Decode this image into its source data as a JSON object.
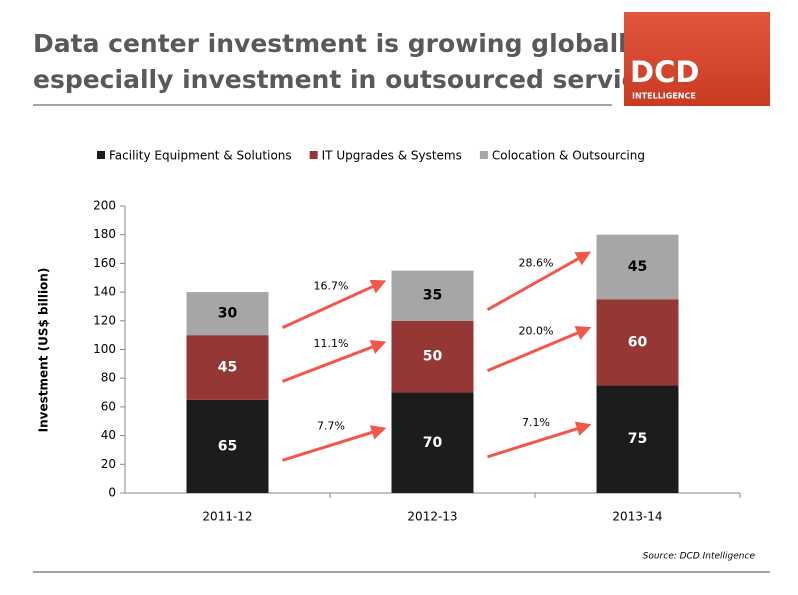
{
  "chart_data": {
    "type": "stacked_bar",
    "title": [
      "Data center investment is growing globally,",
      "especially investment in outsourced services"
    ],
    "logo": [
      "DCD",
      "INTELLIGENCE"
    ],
    "y_label": "Investment (US$ billion)",
    "source": "Source: DCD Intelligence",
    "categories": [
      "2011-12",
      "2012-13",
      "2013-14"
    ],
    "series": [
      {
        "name": "Facility Equipment & Solutions",
        "color": "#1c1c1c",
        "label_color": "#ffffff",
        "values": [
          65,
          70,
          75
        ]
      },
      {
        "name": "IT Upgrades & Systems",
        "color": "#953735",
        "label_color": "#ffffff",
        "values": [
          45,
          50,
          60
        ]
      },
      {
        "name": "Colocation & Outsourcing",
        "color": "#a6a6a6",
        "label_color": "#000000",
        "values": [
          30,
          35,
          45
        ]
      }
    ],
    "growth_labels": [
      [
        "7.7%",
        "11.1%",
        "16.7%"
      ],
      [
        "7.1%",
        "20.0%",
        "28.6%"
      ]
    ],
    "arrow_color": "#f4574a",
    "ylim": [
      0,
      200
    ],
    "yticks": [
      0,
      20,
      40,
      60,
      80,
      100,
      120,
      140,
      160,
      180,
      200
    ],
    "legend": "top"
  }
}
